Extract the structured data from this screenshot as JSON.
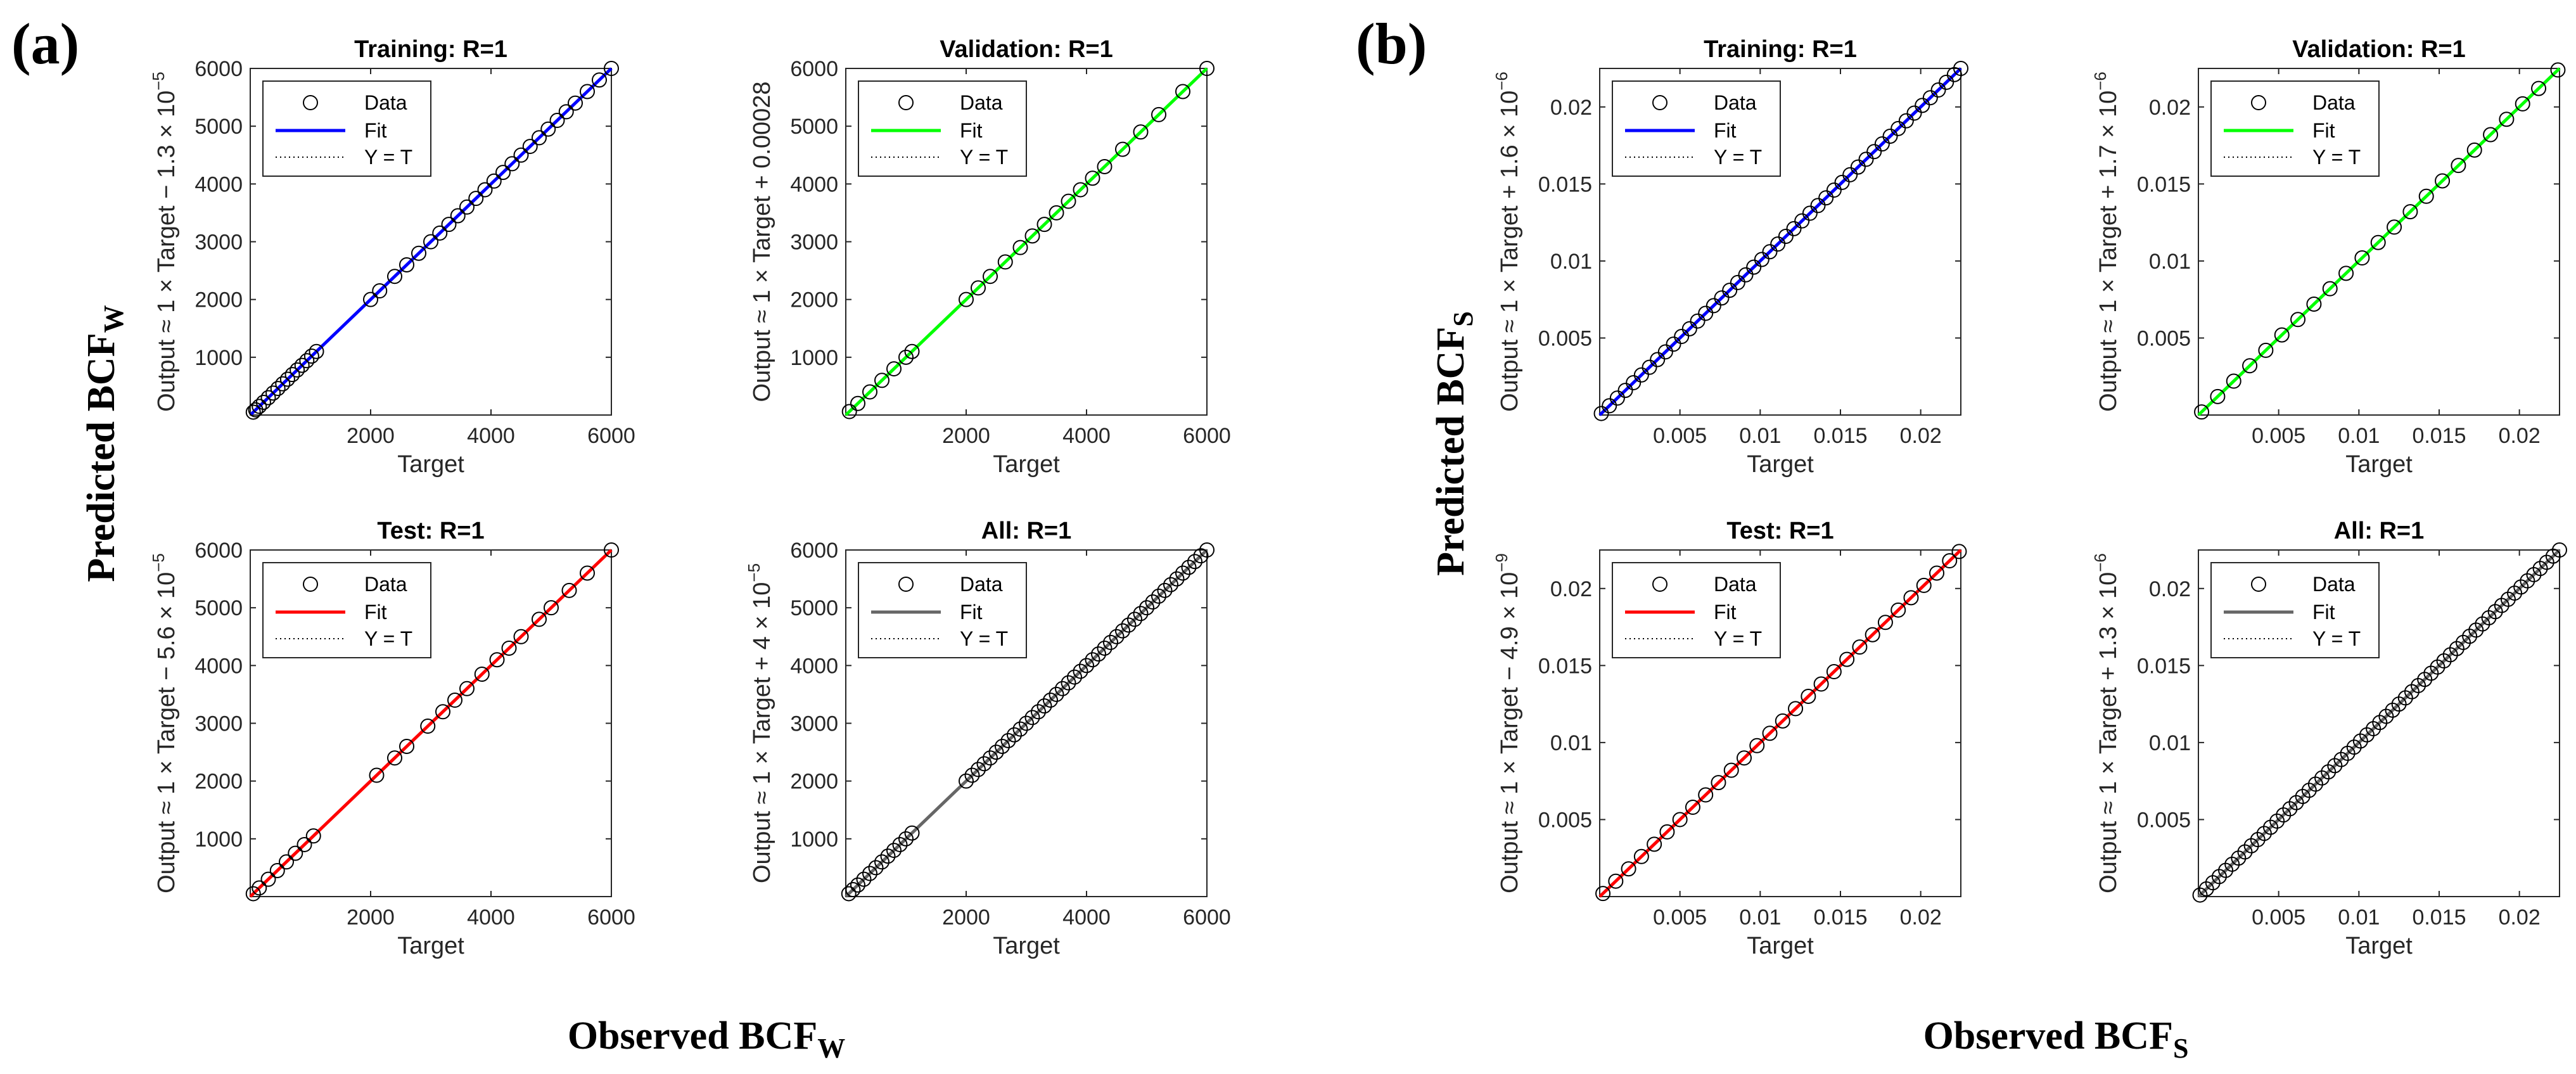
{
  "labels": {
    "panel_a": "(a)",
    "panel_b": "(b)",
    "ylabel_a": "Predicted BCF",
    "ylabel_a_sub": "W",
    "xlabel_a": "Observed BCF",
    "xlabel_a_sub": "W",
    "ylabel_b": "Predicted BCF",
    "ylabel_b_sub": "S",
    "xlabel_b": "Observed BCF",
    "xlabel_b_sub": "S"
  },
  "chart_data": [
    {
      "id": "a-training",
      "type": "scatter",
      "title": "Training: R=1",
      "xlabel": "Target",
      "ylabel": "Output ≈ 1 × Target − 1.3 × 10",
      "ylabel_exp": "−5",
      "fit_color": "#0000ff",
      "xlim": [
        0,
        6000
      ],
      "ylim": [
        0,
        6000
      ],
      "xticks": [
        2000,
        4000,
        6000
      ],
      "xtick_labels": [
        "2000",
        "4000",
        "6000"
      ],
      "yticks": [
        1000,
        2000,
        3000,
        4000,
        5000,
        6000
      ],
      "ytick_labels": [
        "1000",
        "2000",
        "3000",
        "4000",
        "5000",
        "6000"
      ],
      "legend": [
        "Data",
        "Fit",
        "Y = T"
      ],
      "points": [
        50,
        90,
        150,
        220,
        300,
        380,
        460,
        540,
        620,
        700,
        780,
        860,
        940,
        1020,
        1100,
        2000,
        2150,
        2400,
        2600,
        2800,
        3000,
        3150,
        3300,
        3450,
        3600,
        3750,
        3900,
        4050,
        4200,
        4350,
        4500,
        4650,
        4800,
        4950,
        5100,
        5250,
        5400,
        5600,
        5800,
        6000
      ]
    },
    {
      "id": "a-validation",
      "type": "scatter",
      "title": "Validation: R=1",
      "xlabel": "Target",
      "ylabel": "Output ≈ 1 × Target + 0.00028",
      "ylabel_exp": "",
      "fit_color": "#00ff00",
      "xlim": [
        0,
        6000
      ],
      "ylim": [
        0,
        6000
      ],
      "xticks": [
        2000,
        4000,
        6000
      ],
      "xtick_labels": [
        "2000",
        "4000",
        "6000"
      ],
      "yticks": [
        1000,
        2000,
        3000,
        4000,
        5000,
        6000
      ],
      "ytick_labels": [
        "1000",
        "2000",
        "3000",
        "4000",
        "5000",
        "6000"
      ],
      "legend": [
        "Data",
        "Fit",
        "Y = T"
      ],
      "points": [
        60,
        200,
        400,
        600,
        800,
        1000,
        1100,
        2000,
        2200,
        2400,
        2650,
        2900,
        3100,
        3300,
        3500,
        3700,
        3900,
        4100,
        4300,
        4600,
        4900,
        5200,
        5600,
        6000
      ]
    },
    {
      "id": "a-test",
      "type": "scatter",
      "title": "Test: R=1",
      "xlabel": "Target",
      "ylabel": "Output ≈ 1 × Target − 5.6 × 10",
      "ylabel_exp": "−5",
      "fit_color": "#ff0000",
      "xlim": [
        0,
        6000
      ],
      "ylim": [
        0,
        6000
      ],
      "xticks": [
        2000,
        4000,
        6000
      ],
      "xtick_labels": [
        "2000",
        "4000",
        "6000"
      ],
      "yticks": [
        1000,
        2000,
        3000,
        4000,
        5000,
        6000
      ],
      "ytick_labels": [
        "1000",
        "2000",
        "3000",
        "4000",
        "5000",
        "6000"
      ],
      "legend": [
        "Data",
        "Fit",
        "Y = T"
      ],
      "points": [
        50,
        150,
        300,
        450,
        600,
        750,
        900,
        1050,
        2100,
        2400,
        2600,
        2950,
        3200,
        3400,
        3600,
        3850,
        4100,
        4300,
        4500,
        4800,
        5000,
        5300,
        5600,
        6000
      ]
    },
    {
      "id": "a-all",
      "type": "scatter",
      "title": "All: R=1",
      "xlabel": "Target",
      "ylabel": "Output ≈ 1 × Target + 4 × 10",
      "ylabel_exp": "−5",
      "fit_color": "#666666",
      "xlim": [
        0,
        6000
      ],
      "ylim": [
        0,
        6000
      ],
      "xticks": [
        2000,
        4000,
        6000
      ],
      "xtick_labels": [
        "2000",
        "4000",
        "6000"
      ],
      "yticks": [
        1000,
        2000,
        3000,
        4000,
        5000,
        6000
      ],
      "ytick_labels": [
        "1000",
        "2000",
        "3000",
        "4000",
        "5000",
        "6000"
      ],
      "legend": [
        "Data",
        "Fit",
        "Y = T"
      ],
      "points": [
        50,
        120,
        200,
        300,
        400,
        500,
        600,
        700,
        800,
        900,
        1000,
        1100,
        2000,
        2100,
        2200,
        2300,
        2400,
        2500,
        2600,
        2700,
        2800,
        2900,
        3000,
        3100,
        3200,
        3300,
        3400,
        3500,
        3600,
        3700,
        3800,
        3900,
        4000,
        4100,
        4200,
        4300,
        4400,
        4500,
        4600,
        4700,
        4800,
        4900,
        5000,
        5100,
        5200,
        5300,
        5400,
        5500,
        5600,
        5700,
        5800,
        5900,
        6000
      ]
    },
    {
      "id": "b-training",
      "type": "scatter",
      "title": "Training: R=1",
      "xlabel": "Target",
      "ylabel": "Output ≈ 1 × Target + 1.6 × 10",
      "ylabel_exp": "−6",
      "fit_color": "#0000ff",
      "xlim": [
        0,
        0.0225
      ],
      "ylim": [
        0,
        0.0225
      ],
      "xticks": [
        0.005,
        0.01,
        0.015,
        0.02
      ],
      "xtick_labels": [
        "0.005",
        "0.01",
        "0.015",
        "0.02"
      ],
      "yticks": [
        0.005,
        0.01,
        0.015,
        0.02
      ],
      "ytick_labels": [
        "0.005",
        "0.01",
        "0.015",
        "0.02"
      ],
      "legend": [
        "Data",
        "Fit",
        "Y = T"
      ],
      "points": [
        0.0001,
        0.0006,
        0.0011,
        0.0016,
        0.0021,
        0.0026,
        0.0031,
        0.0036,
        0.0041,
        0.0046,
        0.0051,
        0.0056,
        0.0061,
        0.0066,
        0.0071,
        0.0076,
        0.0081,
        0.0086,
        0.0091,
        0.0096,
        0.0101,
        0.0106,
        0.0111,
        0.0116,
        0.0121,
        0.0126,
        0.0131,
        0.0136,
        0.0141,
        0.0146,
        0.0151,
        0.0156,
        0.0161,
        0.0166,
        0.0171,
        0.0176,
        0.0181,
        0.0186,
        0.0191,
        0.0196,
        0.0201,
        0.0206,
        0.0211,
        0.0216,
        0.0221,
        0.0225
      ]
    },
    {
      "id": "b-validation",
      "type": "scatter",
      "title": "Validation: R=1",
      "xlabel": "Target",
      "ylabel": "Output ≈ 1 × Target + 1.7 × 10",
      "ylabel_exp": "−6",
      "fit_color": "#00ff00",
      "xlim": [
        0,
        0.0225
      ],
      "ylim": [
        0,
        0.0225
      ],
      "xticks": [
        0.005,
        0.01,
        0.015,
        0.02
      ],
      "xtick_labels": [
        "0.005",
        "0.01",
        "0.015",
        "0.02"
      ],
      "yticks": [
        0.005,
        0.01,
        0.015,
        0.02
      ],
      "ytick_labels": [
        "0.005",
        "0.01",
        "0.015",
        "0.02"
      ],
      "legend": [
        "Data",
        "Fit",
        "Y = T"
      ],
      "points": [
        0.0002,
        0.0012,
        0.0022,
        0.0032,
        0.0042,
        0.0052,
        0.0062,
        0.0072,
        0.0082,
        0.0092,
        0.0102,
        0.0112,
        0.0122,
        0.0132,
        0.0142,
        0.0152,
        0.0162,
        0.0172,
        0.0182,
        0.0192,
        0.0202,
        0.0212,
        0.0224
      ]
    },
    {
      "id": "b-test",
      "type": "scatter",
      "title": "Test: R=1",
      "xlabel": "Target",
      "ylabel": "Output ≈ 1 × Target − 4.9 × 10",
      "ylabel_exp": "−9",
      "fit_color": "#ff0000",
      "xlim": [
        0,
        0.0225
      ],
      "ylim": [
        0,
        0.0225
      ],
      "xticks": [
        0.005,
        0.01,
        0.015,
        0.02
      ],
      "xtick_labels": [
        "0.005",
        "0.01",
        "0.015",
        "0.02"
      ],
      "yticks": [
        0.005,
        0.01,
        0.015,
        0.02
      ],
      "ytick_labels": [
        "0.005",
        "0.01",
        "0.015",
        "0.02"
      ],
      "legend": [
        "Data",
        "Fit",
        "Y = T"
      ],
      "points": [
        0.0002,
        0.001,
        0.0018,
        0.0026,
        0.0034,
        0.0042,
        0.005,
        0.0058,
        0.0066,
        0.0074,
        0.0082,
        0.009,
        0.0098,
        0.0106,
        0.0114,
        0.0122,
        0.013,
        0.0138,
        0.0146,
        0.0154,
        0.0162,
        0.017,
        0.0178,
        0.0186,
        0.0194,
        0.0202,
        0.021,
        0.0218,
        0.0224
      ]
    },
    {
      "id": "b-all",
      "type": "scatter",
      "title": "All: R=1",
      "xlabel": "Target",
      "ylabel": "Output ≈ 1 × Target + 1.3 × 10",
      "ylabel_exp": "−6",
      "fit_color": "#666666",
      "xlim": [
        0,
        0.0225
      ],
      "ylim": [
        0,
        0.0225
      ],
      "xticks": [
        0.005,
        0.01,
        0.015,
        0.02
      ],
      "xtick_labels": [
        "0.005",
        "0.01",
        "0.015",
        "0.02"
      ],
      "yticks": [
        0.005,
        0.01,
        0.015,
        0.02
      ],
      "ytick_labels": [
        "0.005",
        "0.01",
        "0.015",
        "0.02"
      ],
      "legend": [
        "Data",
        "Fit",
        "Y = T"
      ],
      "points": [
        0.0001,
        0.0005,
        0.0009,
        0.0013,
        0.0017,
        0.0021,
        0.0025,
        0.0029,
        0.0033,
        0.0037,
        0.0041,
        0.0045,
        0.0049,
        0.0053,
        0.0057,
        0.0061,
        0.0065,
        0.0069,
        0.0073,
        0.0077,
        0.0081,
        0.0085,
        0.0089,
        0.0093,
        0.0097,
        0.0101,
        0.0105,
        0.0109,
        0.0113,
        0.0117,
        0.0121,
        0.0125,
        0.0129,
        0.0133,
        0.0137,
        0.0141,
        0.0145,
        0.0149,
        0.0153,
        0.0157,
        0.0161,
        0.0165,
        0.0169,
        0.0173,
        0.0177,
        0.0181,
        0.0185,
        0.0189,
        0.0193,
        0.0197,
        0.0201,
        0.0205,
        0.0209,
        0.0213,
        0.0217,
        0.0221,
        0.0225
      ]
    }
  ]
}
